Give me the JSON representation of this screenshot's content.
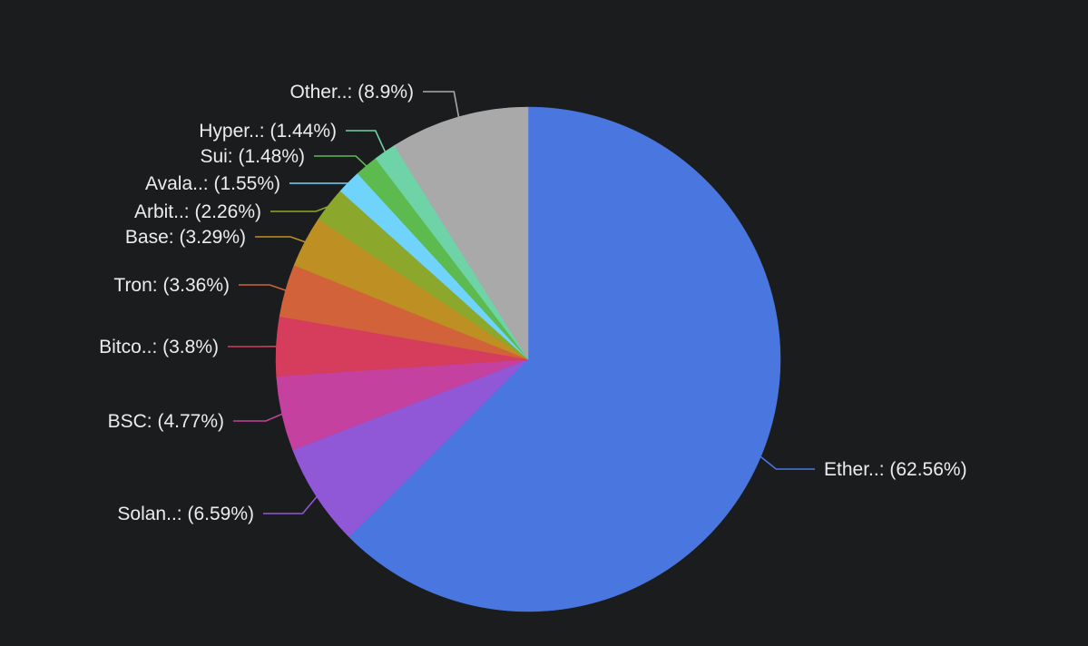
{
  "chart_data": {
    "type": "pie",
    "title": "",
    "slices": [
      {
        "label": "Ether..: (62.56%)",
        "name": "Ether..",
        "value": 62.56,
        "color": "#4a76e0"
      },
      {
        "label": "Solan..: (6.59%)",
        "name": "Solan..",
        "value": 6.59,
        "color": "#9057d6"
      },
      {
        "label": "BSC: (4.77%)",
        "name": "BSC",
        "value": 4.77,
        "color": "#c4419f"
      },
      {
        "label": "Bitco..: (3.8%)",
        "name": "Bitco..",
        "value": 3.8,
        "color": "#d63d5c"
      },
      {
        "label": "Tron: (3.36%)",
        "name": "Tron",
        "value": 3.36,
        "color": "#d2623a"
      },
      {
        "label": "Base: (3.29%)",
        "name": "Base",
        "value": 3.29,
        "color": "#be8f22"
      },
      {
        "label": "Arbit..: (2.26%)",
        "name": "Arbit..",
        "value": 2.26,
        "color": "#8ca82c"
      },
      {
        "label": "Avala..: (1.55%)",
        "name": "Avala..",
        "value": 1.55,
        "color": "#70d3fb"
      },
      {
        "label": "Sui: (1.48%)",
        "name": "Sui",
        "value": 1.48,
        "color": "#5dba4e"
      },
      {
        "label": "Hyper..: (1.44%)",
        "name": "Hyper..",
        "value": 1.44,
        "color": "#6fd3a8"
      },
      {
        "label": "Other..: (8.9%)",
        "name": "Other..",
        "value": 8.9,
        "color": "#a9a9a9"
      }
    ],
    "start_angle_deg": 0,
    "direction": "clockwise",
    "legend": "none (labels on leader lines)"
  }
}
